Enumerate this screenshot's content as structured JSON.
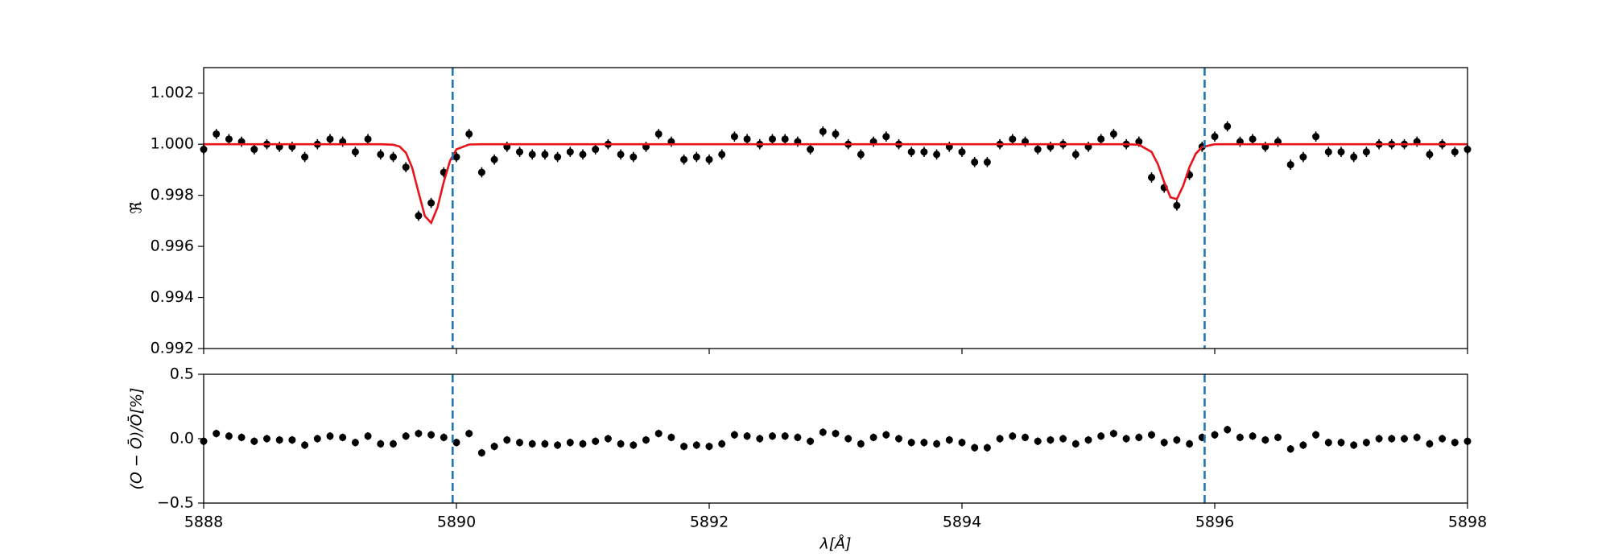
{
  "chart_data": [
    {
      "type": "scatter",
      "ylabel": "ℜ̃",
      "xlim": [
        5888,
        5898
      ],
      "xticks": [
        5888,
        5890,
        5892,
        5894,
        5896,
        5898
      ],
      "ylim": [
        0.992,
        1.003
      ],
      "yticks": [
        0.992,
        0.994,
        0.996,
        0.998,
        {
          "value": 1.0,
          "label": "1.000"
        },
        1.002
      ],
      "vlines": [
        5889.97,
        5895.92
      ],
      "vline_color": "#1f77b4",
      "series": [
        {
          "kind": "points",
          "color": "#000000",
          "error": 0.0002,
          "x": [
            5888.0,
            5888.1,
            5888.2,
            5888.3,
            5888.4,
            5888.5,
            5888.6,
            5888.7,
            5888.8,
            5888.9,
            5889.0,
            5889.1,
            5889.2,
            5889.3,
            5889.4,
            5889.5,
            5889.6,
            5889.7,
            5889.8,
            5889.9,
            5890.0,
            5890.1,
            5890.2,
            5890.3,
            5890.4,
            5890.5,
            5890.6,
            5890.7,
            5890.8,
            5890.9,
            5891.0,
            5891.1,
            5891.2,
            5891.3,
            5891.4,
            5891.5,
            5891.6,
            5891.7,
            5891.8,
            5891.9,
            5892.0,
            5892.1,
            5892.2,
            5892.3,
            5892.4,
            5892.5,
            5892.6,
            5892.7,
            5892.8,
            5892.9,
            5893.0,
            5893.1,
            5893.2,
            5893.3,
            5893.4,
            5893.5,
            5893.6,
            5893.7,
            5893.8,
            5893.9,
            5894.0,
            5894.1,
            5894.2,
            5894.3,
            5894.4,
            5894.5,
            5894.6,
            5894.7,
            5894.8,
            5894.9,
            5895.0,
            5895.1,
            5895.2,
            5895.3,
            5895.4,
            5895.5,
            5895.6,
            5895.7,
            5895.8,
            5895.9,
            5896.0,
            5896.1,
            5896.2,
            5896.3,
            5896.4,
            5896.5,
            5896.6,
            5896.7,
            5896.8,
            5896.9,
            5897.0,
            5897.1,
            5897.2,
            5897.3,
            5897.4,
            5897.5,
            5897.6,
            5897.7,
            5897.8,
            5897.9,
            5898.0
          ],
          "values": [
            0.9998,
            1.0004,
            1.0002,
            1.0001,
            0.9998,
            1.0,
            0.9999,
            0.9999,
            0.9995,
            1.0,
            1.0002,
            1.0001,
            0.9997,
            1.0002,
            0.9996,
            0.9995,
            0.9991,
            0.9972,
            0.9977,
            0.9989,
            0.9995,
            1.0004,
            0.9989,
            0.9994,
            0.9999,
            0.9997,
            0.9996,
            0.9996,
            0.9995,
            0.9997,
            0.9996,
            0.9998,
            1.0,
            0.9996,
            0.9995,
            0.9999,
            1.0004,
            1.0001,
            0.9994,
            0.9995,
            0.9994,
            0.9996,
            1.0003,
            1.0002,
            1.0,
            1.0002,
            1.0002,
            1.0001,
            0.9998,
            1.0005,
            1.0004,
            1.0,
            0.9996,
            1.0001,
            1.0003,
            1.0,
            0.9997,
            0.9997,
            0.9996,
            0.9999,
            0.9997,
            0.9993,
            0.9993,
            1.0,
            1.0002,
            1.0001,
            0.9998,
            0.9999,
            1.0,
            0.9996,
            0.9999,
            1.0002,
            1.0004,
            1.0,
            1.0001,
            0.9987,
            0.9983,
            0.9976,
            0.9988,
            0.9999,
            1.0003,
            1.0007,
            1.0001,
            1.0002,
            0.9999,
            1.0001,
            0.9992,
            0.9995,
            1.0003,
            0.9997,
            0.9997,
            0.9995,
            0.9997,
            1.0,
            1.0,
            1.0,
            1.0001,
            0.9996,
            1.0,
            0.9997,
            0.9998
          ]
        },
        {
          "kind": "line",
          "color": "#e8141a",
          "x": [
            5888,
            5889.3,
            5889.4,
            5889.5,
            5889.55,
            5889.6,
            5889.65,
            5889.7,
            5889.75,
            5889.8,
            5889.85,
            5889.9,
            5889.95,
            5890.0,
            5890.1,
            5890.2,
            5895.2,
            5895.3,
            5895.4,
            5895.5,
            5895.55,
            5895.6,
            5895.65,
            5895.7,
            5895.75,
            5895.8,
            5895.85,
            5895.9,
            5896.0,
            5896.1,
            5898
          ],
          "values": [
            1.0,
            1.0,
            1.0,
            0.99998,
            0.99991,
            0.99967,
            0.99908,
            0.99812,
            0.99719,
            0.99692,
            0.99752,
            0.99853,
            0.99936,
            0.9998,
            0.99999,
            1.0,
            1.0,
            1.0,
            0.99998,
            0.9997,
            0.99922,
            0.99852,
            0.99792,
            0.99785,
            0.99837,
            0.9991,
            0.99963,
            0.99989,
            1.0,
            1.0,
            1.0
          ]
        }
      ]
    },
    {
      "type": "scatter",
      "ylabel": "(O − Ō)/Ō[%]",
      "xlabel": "λ[Å]",
      "xlim": [
        5888,
        5898
      ],
      "xticks": [
        5888,
        5890,
        5892,
        5894,
        5896,
        5898
      ],
      "ylim": [
        -0.5,
        0.5
      ],
      "yticks": [
        {
          "value": -0.5,
          "label": "−0.5"
        },
        {
          "value": 0.0,
          "label": "0.0"
        },
        0.5
      ],
      "vlines": [
        5889.97,
        5895.92
      ],
      "vline_color": "#1f77b4",
      "series": [
        {
          "kind": "points",
          "color": "#000000",
          "error": 0.03,
          "x": [
            5888.0,
            5888.1,
            5888.2,
            5888.3,
            5888.4,
            5888.5,
            5888.6,
            5888.7,
            5888.8,
            5888.9,
            5889.0,
            5889.1,
            5889.2,
            5889.3,
            5889.4,
            5889.5,
            5889.6,
            5889.7,
            5889.8,
            5889.9,
            5890.0,
            5890.1,
            5890.2,
            5890.3,
            5890.4,
            5890.5,
            5890.6,
            5890.7,
            5890.8,
            5890.9,
            5891.0,
            5891.1,
            5891.2,
            5891.3,
            5891.4,
            5891.5,
            5891.6,
            5891.7,
            5891.8,
            5891.9,
            5892.0,
            5892.1,
            5892.2,
            5892.3,
            5892.4,
            5892.5,
            5892.6,
            5892.7,
            5892.8,
            5892.9,
            5893.0,
            5893.1,
            5893.2,
            5893.3,
            5893.4,
            5893.5,
            5893.6,
            5893.7,
            5893.8,
            5893.9,
            5894.0,
            5894.1,
            5894.2,
            5894.3,
            5894.4,
            5894.5,
            5894.6,
            5894.7,
            5894.8,
            5894.9,
            5895.0,
            5895.1,
            5895.2,
            5895.3,
            5895.4,
            5895.5,
            5895.6,
            5895.7,
            5895.8,
            5895.9,
            5896.0,
            5896.1,
            5896.2,
            5896.3,
            5896.4,
            5896.5,
            5896.6,
            5896.7,
            5896.8,
            5896.9,
            5897.0,
            5897.1,
            5897.2,
            5897.3,
            5897.4,
            5897.5,
            5897.6,
            5897.7,
            5897.8,
            5897.9,
            5898.0
          ],
          "values": [
            -0.02,
            0.04,
            0.02,
            0.01,
            -0.02,
            0.0,
            -0.01,
            -0.01,
            -0.05,
            0.0,
            0.02,
            0.01,
            -0.03,
            0.02,
            -0.04,
            -0.04,
            0.02,
            0.04,
            0.03,
            0.01,
            -0.03,
            0.04,
            -0.11,
            -0.06,
            -0.01,
            -0.03,
            -0.04,
            -0.04,
            -0.05,
            -0.03,
            -0.04,
            -0.02,
            0.0,
            -0.04,
            -0.05,
            -0.01,
            0.04,
            0.01,
            -0.06,
            -0.05,
            -0.06,
            -0.04,
            0.03,
            0.02,
            0.0,
            0.02,
            0.02,
            0.01,
            -0.02,
            0.05,
            0.04,
            0.0,
            -0.04,
            0.01,
            0.03,
            0.0,
            -0.03,
            -0.03,
            -0.04,
            -0.01,
            -0.03,
            -0.07,
            -0.07,
            0.0,
            0.02,
            0.01,
            -0.02,
            -0.01,
            0.0,
            -0.04,
            -0.01,
            0.02,
            0.04,
            0.0,
            0.01,
            0.03,
            -0.03,
            -0.01,
            -0.04,
            0.01,
            0.03,
            0.07,
            0.01,
            0.02,
            -0.01,
            0.01,
            -0.08,
            -0.05,
            0.03,
            -0.03,
            -0.03,
            -0.05,
            -0.03,
            0.0,
            0.0,
            0.0,
            0.01,
            -0.04,
            0.0,
            -0.03,
            -0.02
          ]
        }
      ]
    }
  ]
}
